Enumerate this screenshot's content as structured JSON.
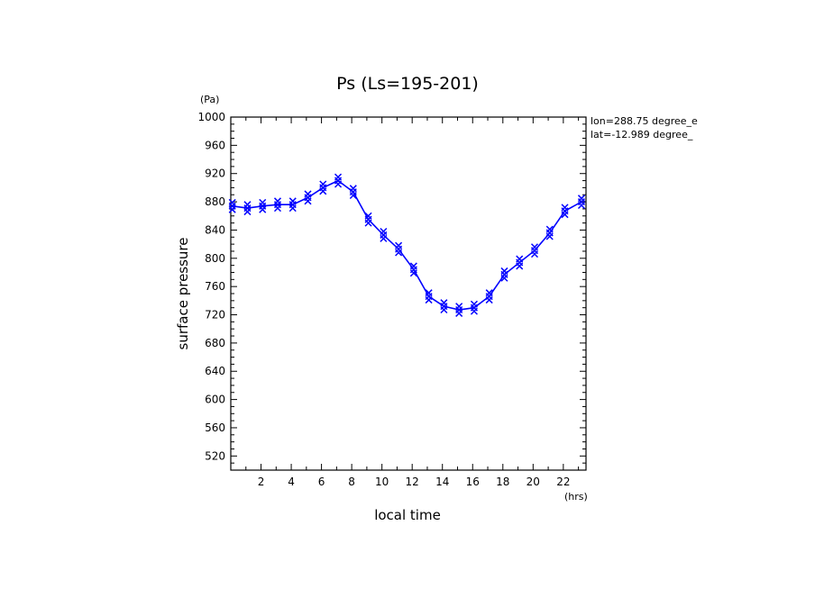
{
  "chart_data": {
    "type": "line",
    "title": "Ps (Ls=195-201)",
    "xlabel": "local time",
    "ylabel": "surface pressure",
    "x_unit": "(hrs)",
    "y_unit": "(Pa)",
    "xlim": [
      0,
      23.5
    ],
    "ylim": [
      500,
      1000
    ],
    "x_ticks": [
      2,
      4,
      6,
      8,
      10,
      12,
      14,
      16,
      18,
      20,
      22
    ],
    "y_ticks": [
      520,
      560,
      600,
      640,
      680,
      720,
      760,
      800,
      840,
      880,
      920,
      960,
      1000
    ],
    "annotations": [
      "lon=288.75 degree_e",
      "lat=-12.989 degree_"
    ],
    "line_color": "#0000ff",
    "series": [
      {
        "x": [
          0.1,
          1.1,
          2.1,
          3.1,
          4.1,
          5.1,
          6.1,
          7.1,
          8.1,
          9.1,
          10.1,
          11.1,
          12.1,
          13.1,
          14.1,
          15.1,
          16.1,
          17.1,
          18.1,
          19.1,
          20.1,
          21.1,
          22.1,
          23.2
        ],
        "values": [
          874,
          871,
          874,
          876,
          876,
          886,
          900,
          910,
          894,
          855,
          833,
          813,
          784,
          746,
          732,
          727,
          730,
          746,
          777,
          794,
          811,
          836,
          867,
          880
        ]
      }
    ]
  }
}
